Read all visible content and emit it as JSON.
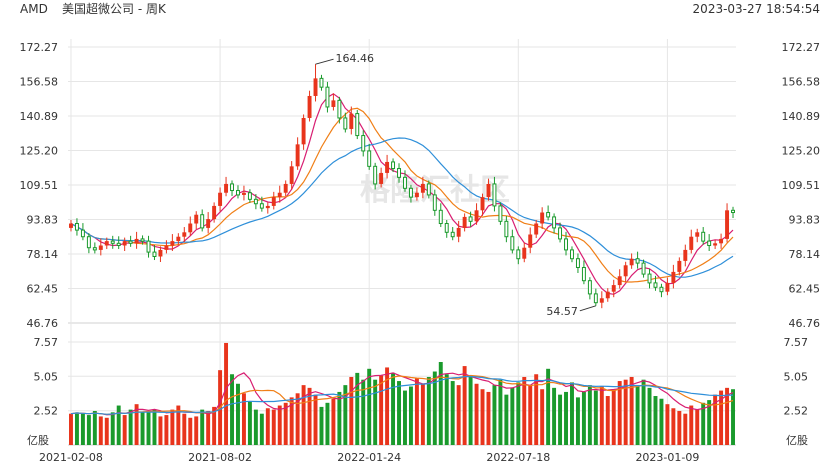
{
  "header": {
    "symbol": "AMD",
    "name": "美国超微公司 - 周K",
    "datetime": "2023-03-27 18:54:54"
  },
  "watermark": "格隆汇社区",
  "colors": {
    "up": "#e8341c",
    "down": "#1a9a2c",
    "ma5": "#d81e72",
    "ma10": "#f07f17",
    "ma20": "#2e8fd9",
    "grid": "#e6e6e6"
  },
  "chart_data": {
    "type": "candlestick",
    "price_axis": {
      "ticks": [
        172.27,
        156.58,
        140.89,
        125.2,
        109.51,
        93.83,
        78.14,
        62.45,
        46.76
      ],
      "ylim": [
        46.76,
        172.27
      ]
    },
    "volume_axis": {
      "ticks": [
        7.57,
        5.05,
        2.52
      ],
      "unit": "亿股",
      "ylim": [
        0,
        7.57
      ]
    },
    "x_ticks": [
      {
        "label": "2021-02-08",
        "index": 0
      },
      {
        "label": "2021-08-02",
        "index": 25
      },
      {
        "label": "2022-01-24",
        "index": 50
      },
      {
        "label": "2022-07-18",
        "index": 75
      },
      {
        "label": "2023-01-09",
        "index": 100
      }
    ],
    "annotations": [
      {
        "label": "164.46",
        "value": 164.46,
        "kind": "high"
      },
      {
        "label": "54.57",
        "value": 54.57,
        "kind": "low"
      }
    ],
    "closes": [
      92,
      89,
      86,
      81,
      80,
      82,
      84,
      83,
      82,
      84,
      83,
      85,
      84,
      79,
      77,
      80,
      82,
      84,
      86,
      88,
      92,
      96,
      90,
      94,
      100,
      106,
      110,
      107,
      105,
      106,
      103,
      101,
      99,
      100,
      104,
      106,
      110,
      118,
      128,
      140,
      150,
      158,
      154,
      145,
      148,
      140,
      135,
      142,
      132,
      125,
      118,
      110,
      115,
      120,
      117,
      113,
      108,
      104,
      106,
      110,
      105,
      98,
      92,
      88,
      86,
      90,
      95,
      93,
      98,
      104,
      110,
      100,
      93,
      86,
      80,
      76,
      81,
      87,
      92,
      97,
      95,
      90,
      85,
      80,
      76,
      72,
      66,
      60,
      56,
      58,
      61,
      64,
      68,
      73,
      76,
      74,
      69,
      65,
      63,
      61,
      65,
      70,
      75,
      80,
      86,
      88,
      84,
      82,
      83,
      85,
      98,
      97
    ],
    "volumes": [
      2.3,
      2.4,
      2.3,
      2.2,
      2.5,
      2.1,
      2.0,
      2.4,
      2.9,
      2.2,
      2.6,
      3.0,
      2.4,
      2.5,
      2.6,
      2.1,
      2.2,
      2.6,
      2.9,
      2.3,
      2.0,
      2.1,
      2.6,
      2.5,
      2.8,
      5.5,
      7.5,
      5.2,
      4.5,
      3.8,
      3.2,
      2.6,
      2.3,
      2.7,
      2.6,
      2.9,
      3.1,
      3.5,
      3.8,
      4.4,
      4.2,
      3.7,
      2.8,
      3.1,
      3.4,
      3.9,
      4.4,
      5.0,
      5.3,
      4.8,
      5.6,
      4.8,
      5.1,
      5.7,
      5.3,
      4.7,
      4.0,
      4.3,
      4.9,
      4.5,
      5.0,
      5.4,
      6.1,
      5.2,
      4.7,
      4.4,
      5.8,
      5.1,
      4.5,
      4.1,
      3.9,
      4.4,
      4.8,
      3.7,
      4.2,
      4.6,
      5.0,
      4.4,
      5.2,
      4.1,
      5.6,
      4.2,
      3.7,
      3.9,
      4.6,
      3.5,
      3.9,
      4.4,
      4.0,
      4.3,
      3.6,
      4.1,
      4.7,
      4.8,
      5.0,
      4.3,
      4.8,
      4.2,
      3.6,
      3.4,
      3.0,
      2.7,
      2.5,
      2.3,
      2.9,
      2.6,
      3.1,
      3.3,
      3.7,
      4.0,
      4.2,
      4.1
    ]
  }
}
